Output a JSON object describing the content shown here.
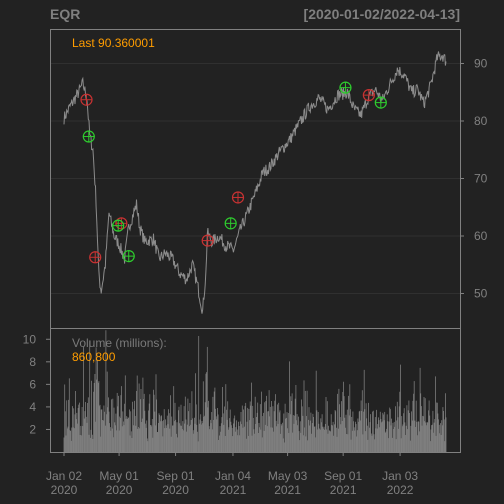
{
  "chart_data": {
    "type": "line",
    "symbol": "EQR",
    "date_range": "[2020-01-02/2022-04-13]",
    "price_panel": {
      "last_label": "Last 90.360001",
      "y_ticks": [
        50,
        60,
        70,
        80,
        90
      ],
      "ylim": [
        44,
        96
      ],
      "grid": true,
      "series": [
        {
          "date": "2020-01-02",
          "value": 80.5
        },
        {
          "date": "2020-01-15",
          "value": 82.5
        },
        {
          "date": "2020-02-03",
          "value": 85.0
        },
        {
          "date": "2020-02-12",
          "value": 86.5
        },
        {
          "date": "2020-02-21",
          "value": 84.0
        },
        {
          "date": "2020-02-27",
          "value": 77.5
        },
        {
          "date": "2020-03-05",
          "value": 75.0
        },
        {
          "date": "2020-03-12",
          "value": 66.0
        },
        {
          "date": "2020-03-18",
          "value": 53.0
        },
        {
          "date": "2020-03-23",
          "value": 50.5
        },
        {
          "date": "2020-04-01",
          "value": 55.0
        },
        {
          "date": "2020-04-09",
          "value": 64.0
        },
        {
          "date": "2020-04-20",
          "value": 60.0
        },
        {
          "date": "2020-05-01",
          "value": 58.5
        },
        {
          "date": "2020-05-13",
          "value": 56.0
        },
        {
          "date": "2020-05-22",
          "value": 61.5
        },
        {
          "date": "2020-06-08",
          "value": 65.5
        },
        {
          "date": "2020-06-15",
          "value": 61.5
        },
        {
          "date": "2020-06-26",
          "value": 59.0
        },
        {
          "date": "2020-07-15",
          "value": 59.5
        },
        {
          "date": "2020-07-27",
          "value": 56.0
        },
        {
          "date": "2020-08-10",
          "value": 57.0
        },
        {
          "date": "2020-08-25",
          "value": 56.0
        },
        {
          "date": "2020-09-10",
          "value": 53.5
        },
        {
          "date": "2020-09-25",
          "value": 52.5
        },
        {
          "date": "2020-10-08",
          "value": 55.0
        },
        {
          "date": "2020-10-20",
          "value": 51.0
        },
        {
          "date": "2020-10-30",
          "value": 47.0
        },
        {
          "date": "2020-11-06",
          "value": 53.5
        },
        {
          "date": "2020-11-09",
          "value": 60.5
        },
        {
          "date": "2020-11-20",
          "value": 59.0
        },
        {
          "date": "2020-12-04",
          "value": 60.0
        },
        {
          "date": "2020-12-18",
          "value": 58.5
        },
        {
          "date": "2021-01-05",
          "value": 57.5
        },
        {
          "date": "2021-01-20",
          "value": 61.0
        },
        {
          "date": "2021-02-05",
          "value": 64.0
        },
        {
          "date": "2021-02-20",
          "value": 67.0
        },
        {
          "date": "2021-03-10",
          "value": 71.0
        },
        {
          "date": "2021-03-25",
          "value": 72.0
        },
        {
          "date": "2021-04-15",
          "value": 74.5
        },
        {
          "date": "2021-05-10",
          "value": 77.0
        },
        {
          "date": "2021-06-01",
          "value": 80.0
        },
        {
          "date": "2021-06-20",
          "value": 82.5
        },
        {
          "date": "2021-07-10",
          "value": 84.0
        },
        {
          "date": "2021-07-30",
          "value": 82.0
        },
        {
          "date": "2021-08-20",
          "value": 84.5
        },
        {
          "date": "2021-09-10",
          "value": 85.0
        },
        {
          "date": "2021-09-25",
          "value": 82.0
        },
        {
          "date": "2021-10-10",
          "value": 81.0
        },
        {
          "date": "2021-10-25",
          "value": 84.0
        },
        {
          "date": "2021-11-10",
          "value": 85.5
        },
        {
          "date": "2021-11-25",
          "value": 83.5
        },
        {
          "date": "2021-12-10",
          "value": 86.0
        },
        {
          "date": "2021-12-28",
          "value": 89.0
        },
        {
          "date": "2022-01-12",
          "value": 88.0
        },
        {
          "date": "2022-01-28",
          "value": 85.0
        },
        {
          "date": "2022-02-10",
          "value": 85.5
        },
        {
          "date": "2022-02-24",
          "value": 83.0
        },
        {
          "date": "2022-03-10",
          "value": 86.0
        },
        {
          "date": "2022-03-25",
          "value": 91.0
        },
        {
          "date": "2022-04-05",
          "value": 91.5
        },
        {
          "date": "2022-04-13",
          "value": 90.36
        }
      ],
      "markers": {
        "buy": [
          {
            "date": "2020-02-25",
            "value": 77.3
          },
          {
            "date": "2020-04-29",
            "value": 61.8
          },
          {
            "date": "2020-05-22",
            "value": 56.5
          },
          {
            "date": "2020-12-30",
            "value": 62.2
          },
          {
            "date": "2021-09-06",
            "value": 85.8
          },
          {
            "date": "2021-11-22",
            "value": 83.2
          }
        ],
        "sell": [
          {
            "date": "2020-02-20",
            "value": 83.7
          },
          {
            "date": "2020-03-10",
            "value": 56.3
          },
          {
            "date": "2020-05-06",
            "value": 62.2
          },
          {
            "date": "2020-11-10",
            "value": 59.2
          },
          {
            "date": "2021-01-15",
            "value": 66.7
          },
          {
            "date": "2021-10-27",
            "value": 84.5
          }
        ]
      }
    },
    "volume_panel": {
      "label": "Volume (millions):",
      "last_volume": "860,800",
      "y_ticks": [
        2,
        4,
        6,
        8,
        10
      ],
      "ylim": [
        0,
        11
      ]
    },
    "x_ticks": [
      {
        "date": "2020-01-02",
        "line1": "Jan 02",
        "line2": "2020"
      },
      {
        "date": "2020-05-01",
        "line1": "May 01",
        "line2": "2020"
      },
      {
        "date": "2020-09-01",
        "line1": "Sep 01",
        "line2": "2020"
      },
      {
        "date": "2021-01-04",
        "line1": "Jan 04",
        "line2": "2021"
      },
      {
        "date": "2021-05-03",
        "line1": "May 03",
        "line2": "2021"
      },
      {
        "date": "2021-09-01",
        "line1": "Sep 01",
        "line2": "2021"
      },
      {
        "date": "2022-01-03",
        "line1": "Jan 03",
        "line2": "2022"
      }
    ],
    "colors": {
      "background": "#222222",
      "frame": "#808080",
      "grid": "#303030",
      "price_line": "#8c8c8c",
      "volume_bars": "#8c8c8c",
      "buy_marker": "#2ecc2e",
      "sell_marker": "#c83232",
      "last_text": "#ff9d00",
      "title_text": "#7f7f7f"
    }
  }
}
